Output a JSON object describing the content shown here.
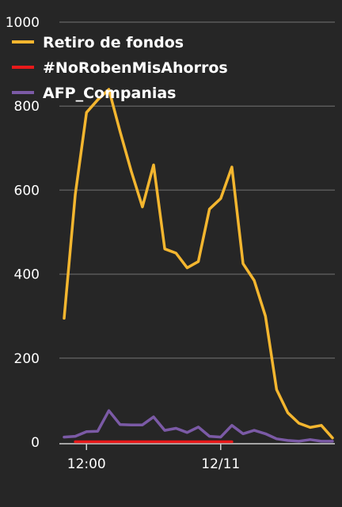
{
  "chart_data": {
    "type": "line",
    "title": "",
    "xlabel": "",
    "ylabel": "",
    "ylim": [
      0,
      1000
    ],
    "yticks": [
      0,
      200,
      400,
      600,
      800,
      1000
    ],
    "grid": true,
    "legend_position": "top-left",
    "x_tick_labels": [
      {
        "index": 2,
        "label": "12:00"
      },
      {
        "index": 14,
        "label": "12/11"
      }
    ],
    "x": [
      0,
      1,
      2,
      3,
      4,
      5,
      6,
      7,
      8,
      9,
      10,
      11,
      12,
      13,
      14,
      15,
      16,
      17,
      18,
      19,
      20,
      21,
      22,
      23,
      24
    ],
    "series": [
      {
        "name": "Retiro de fondos",
        "color": "#f4b62f",
        "values": [
          295,
          590,
          785,
          815,
          840,
          740,
          645,
          560,
          660,
          460,
          450,
          415,
          430,
          555,
          580,
          655,
          425,
          385,
          300,
          125,
          70,
          45,
          35,
          40,
          10
        ]
      },
      {
        "name": "#NoRobenMisAhorros",
        "color": "#e8191a",
        "values": [
          null,
          1,
          1,
          1,
          1,
          1,
          1,
          1,
          1,
          1,
          1,
          1,
          1,
          1,
          1,
          1,
          null,
          null,
          null,
          null,
          null,
          null,
          null,
          null,
          null
        ]
      },
      {
        "name": "AFP_Companias",
        "color": "#7b5aa6",
        "values": [
          12,
          14,
          25,
          26,
          75,
          42,
          41,
          41,
          60,
          28,
          33,
          23,
          36,
          14,
          12,
          40,
          20,
          28,
          20,
          8,
          4,
          2,
          6,
          2,
          2
        ]
      }
    ]
  }
}
